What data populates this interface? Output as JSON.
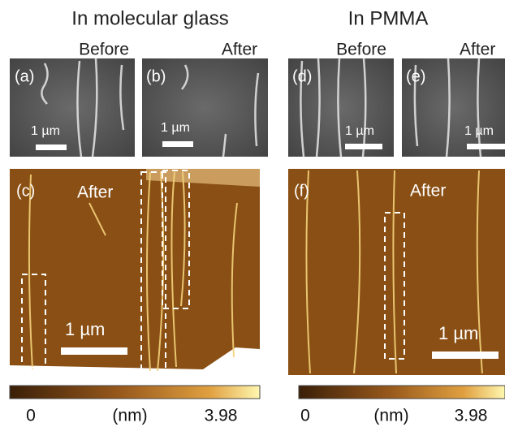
{
  "headers": [
    "In molecular glass",
    "In PMMA"
  ],
  "panels": [
    {
      "label": "(a)",
      "caption": "Before",
      "scale": "1 µm"
    },
    {
      "label": "(b)",
      "caption": "After",
      "scale": "1 µm"
    },
    {
      "label": "(d)",
      "caption": "Before",
      "scale": "1 µm"
    },
    {
      "label": "(e)",
      "caption": "After",
      "scale": "1 µm"
    },
    {
      "label": "(c)",
      "caption": "After",
      "scale": "1 µm"
    },
    {
      "label": "(f)",
      "caption": "After",
      "scale": "1 µm"
    }
  ],
  "colorbars": [
    {
      "min": "0",
      "unit": "(nm)",
      "max": "3.98"
    },
    {
      "min": "0",
      "unit": "(nm)",
      "max": "3.98"
    }
  ]
}
